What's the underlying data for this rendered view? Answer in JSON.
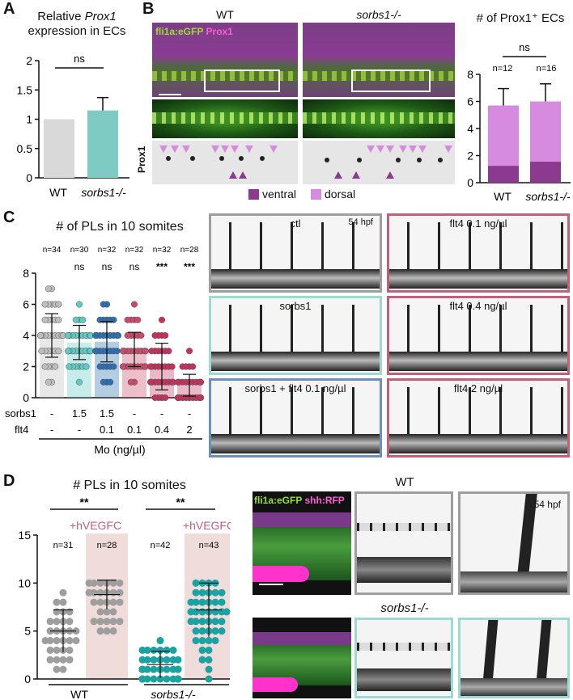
{
  "figure": {
    "panels": {
      "A": {
        "letter": "A",
        "title_l1": "Relative",
        "title_gene": "Prox1",
        "title_l2": "expression in ECs",
        "significance": "ns",
        "xcats": [
          "WT",
          "sorbs1-/-"
        ],
        "colors": {
          "wt": "#d9d9d9",
          "mut": "#7ecbc3"
        }
      },
      "B": {
        "letter": "B",
        "col_wt": "WT",
        "col_mut": "sorbs1-/-",
        "overlay_green": "fli1a:eGFP",
        "overlay_magenta": "Prox1",
        "row_label": "Prox1",
        "legend_ventral": "ventral",
        "legend_dorsal": "dorsal",
        "chart_title": "# of Prox1⁺ ECs",
        "significance": "ns",
        "n_wt": "n=12",
        "n_mut": "n=16",
        "colors": {
          "ventral": "#8b3a8f",
          "dorsal": "#d68be0"
        }
      },
      "C": {
        "letter": "C",
        "chart_title": "# of PLs in 10 somites",
        "n_labels": [
          "n=34",
          "n=30",
          "n=32",
          "n=32",
          "n=32",
          "n=28"
        ],
        "sig_labels": [
          "ns",
          "ns",
          "ns",
          "***",
          "***"
        ],
        "row_sorbs1": "sorbs1",
        "row_flt4": "flt4",
        "sorbs1_vals": [
          "-",
          "1.5",
          "1.5",
          "-",
          "-",
          "-"
        ],
        "flt4_vals": [
          "-",
          "-",
          "0.1",
          "0.1",
          "0.4",
          "2"
        ],
        "mo_label": "Mo (ng/µl)",
        "images": [
          {
            "label": "ctl",
            "extra": "54 hpf",
            "border": "#9e9e9e"
          },
          {
            "label": "flt4 0.1 ng/µl",
            "extra": "",
            "border": "#c0607a"
          },
          {
            "label": "sorbs1",
            "extra": "",
            "border": "#9fd9d3"
          },
          {
            "label": "flt4 0.4 ng/µl",
            "extra": "",
            "border": "#c0607a"
          },
          {
            "label": "sorbs1 + flt4 0.1 ng/µl",
            "extra": "",
            "border": "#6a8fc0"
          },
          {
            "label": "flt4 2 ng/µl",
            "extra": "",
            "border": "#c0607a"
          }
        ]
      },
      "D": {
        "letter": "D",
        "chart_title": "# PLs in 10 somites",
        "sig_wt": "**",
        "sig_mut": "**",
        "hvegfc_1": "+hVEGFC",
        "hvegfc_2": "+hVEGFC",
        "n_labels": [
          "n=31",
          "n=28",
          "n=42",
          "n=43"
        ],
        "group_wt": "WT",
        "group_mut": "sorbs1-/-",
        "row_wt": "WT",
        "row_mut": "sorbs1-/-",
        "overlay_green": "fli1a:eGFP",
        "overlay_magenta": "shh:RFP",
        "time_label": "54 hpf",
        "colors": {
          "wt": "#9e9e9e",
          "mut": "#1aa3a0",
          "shade": "#f1dcdc"
        }
      }
    }
  },
  "chart_data": [
    {
      "type": "bar",
      "panel": "A",
      "categories": [
        "WT",
        "sorbs1-/-"
      ],
      "values": [
        1.0,
        1.15
      ],
      "errors": [
        0,
        0.22
      ],
      "ylim": [
        0,
        2
      ],
      "yticks": [
        0,
        0.5,
        1,
        1.5,
        2
      ]
    },
    {
      "type": "bar",
      "panel": "B",
      "stacked": true,
      "categories": [
        "WT",
        "sorbs1-/-"
      ],
      "series": [
        {
          "name": "ventral",
          "values": [
            1.25,
            1.55
          ],
          "errors": [
            0.6,
            0.5
          ]
        },
        {
          "name": "dorsal",
          "values": [
            4.45,
            4.45
          ],
          "errors": [
            1.25,
            1.3
          ]
        }
      ],
      "ylim": [
        0,
        8
      ],
      "yticks": [
        0,
        2,
        4,
        6,
        8
      ]
    },
    {
      "type": "scatter",
      "panel": "C",
      "categories": [
        "ctl",
        "sorbs1 1.5",
        "sorbs1 1.5 + flt4 0.1",
        "flt4 0.1",
        "flt4 0.4",
        "flt4 2"
      ],
      "means": [
        4.0,
        3.55,
        3.6,
        3.1,
        2.0,
        0.8
      ],
      "sd": [
        1.4,
        1.1,
        1.3,
        1.1,
        1.5,
        0.7
      ],
      "ylim": [
        0,
        8
      ],
      "yticks": [
        0,
        2,
        4,
        6,
        8
      ],
      "colors": [
        "#bdbdbd",
        "#5ecbc4",
        "#2c6fb0",
        "#c94a6a",
        "#c2335c",
        "#c2335c"
      ],
      "point_sets": [
        [
          7,
          7,
          6,
          6,
          6,
          6,
          6,
          5,
          5,
          5,
          5,
          5,
          4,
          4,
          4,
          4,
          4,
          4,
          4,
          4,
          4,
          4,
          3,
          3,
          3,
          3,
          3,
          3,
          2,
          2,
          2,
          2,
          1,
          1
        ],
        [
          6,
          5,
          5,
          5,
          4,
          4,
          4,
          4,
          4,
          4,
          4,
          4,
          4,
          4,
          3,
          3,
          3,
          3,
          3,
          3,
          3,
          3,
          3,
          2,
          2,
          2,
          2,
          2,
          2,
          1
        ],
        [
          6,
          6,
          5,
          5,
          5,
          5,
          5,
          4,
          4,
          4,
          4,
          4,
          4,
          4,
          4,
          4,
          3,
          3,
          3,
          3,
          3,
          3,
          3,
          3,
          2,
          2,
          2,
          2,
          2,
          1,
          1,
          1
        ],
        [
          6,
          5,
          5,
          5,
          5,
          4,
          4,
          4,
          4,
          4,
          3,
          3,
          3,
          3,
          3,
          3,
          3,
          3,
          3,
          3,
          2,
          2,
          2,
          2,
          2,
          2,
          2,
          2,
          2,
          2,
          1,
          1
        ],
        [
          5,
          4,
          4,
          4,
          4,
          3,
          3,
          3,
          3,
          3,
          3,
          2,
          2,
          2,
          2,
          2,
          2,
          2,
          2,
          1,
          1,
          1,
          1,
          1,
          1,
          1,
          1,
          1,
          0,
          0,
          0,
          0
        ],
        [
          3,
          2,
          2,
          2,
          2,
          1,
          1,
          1,
          1,
          1,
          1,
          1,
          1,
          1,
          1,
          1,
          0,
          0,
          0,
          0,
          0,
          0,
          0,
          0,
          0,
          0,
          0,
          0
        ]
      ]
    },
    {
      "type": "scatter",
      "panel": "D",
      "categories": [
        "WT",
        "WT +hVEGFC",
        "sorbs1-/-",
        "sorbs1-/- +hVEGFC"
      ],
      "means": [
        5.0,
        8.8,
        1.5,
        7.2
      ],
      "sd": [
        2.2,
        1.5,
        1.4,
        2.8
      ],
      "ylim": [
        0,
        15
      ],
      "yticks": [
        0,
        5,
        10,
        15
      ],
      "colors": [
        "#9e9e9e",
        "#9e9e9e",
        "#1aa3a0",
        "#1aa3a0"
      ],
      "point_sets": [
        [
          9,
          8,
          8,
          7,
          7,
          7,
          6,
          6,
          6,
          6,
          5,
          5,
          5,
          5,
          5,
          4,
          4,
          4,
          4,
          4,
          4,
          3,
          3,
          3,
          3,
          2,
          2,
          2,
          2,
          1,
          1
        ],
        [
          10,
          10,
          10,
          10,
          10,
          9,
          9,
          9,
          9,
          9,
          8,
          8,
          8,
          8,
          7,
          7,
          7,
          6,
          6,
          6,
          6,
          6,
          5,
          5,
          5,
          10,
          9,
          8
        ],
        [
          4,
          3,
          3,
          3,
          3,
          3,
          3,
          2,
          2,
          2,
          2,
          2,
          2,
          2,
          1,
          1,
          1,
          1,
          1,
          1,
          1,
          1,
          1,
          1,
          1,
          1,
          0,
          0,
          0,
          0,
          0,
          0,
          0,
          0,
          0,
          0,
          0,
          0,
          0,
          0,
          0,
          0
        ],
        [
          10,
          10,
          10,
          10,
          9,
          9,
          9,
          9,
          9,
          8,
          8,
          8,
          8,
          8,
          8,
          7,
          7,
          7,
          7,
          7,
          7,
          7,
          6,
          6,
          6,
          6,
          6,
          6,
          5,
          5,
          5,
          5,
          5,
          4,
          4,
          4,
          4,
          3,
          3,
          2,
          2,
          1,
          0
        ]
      ]
    }
  ]
}
